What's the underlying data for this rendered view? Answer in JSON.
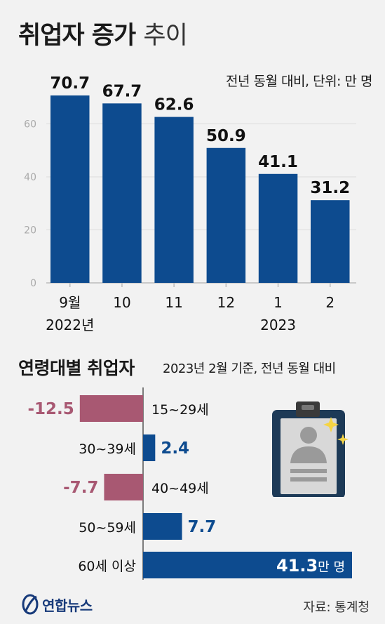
{
  "title_bold": "취업자 증가",
  "title_thin": "추이",
  "note_top": "전년 동월 대비, 단위: 만 명",
  "colors": {
    "navy": "#0d4b8f",
    "rose": "#a85872",
    "axis": "#bbbbbb"
  },
  "chart_data": [
    {
      "type": "bar",
      "categories": [
        "9월",
        "10",
        "11",
        "12",
        "1",
        "2"
      ],
      "year_labels": [
        "2022년",
        "2023"
      ],
      "values": [
        70.7,
        67.7,
        62.6,
        50.9,
        41.1,
        31.2
      ],
      "value_labels": [
        "70.7",
        "67.7",
        "62.6",
        "50.9",
        "41.1",
        "31.2"
      ],
      "yticks": [
        0,
        20,
        40,
        60
      ],
      "ylim": [
        0,
        72
      ],
      "grid": true
    },
    {
      "type": "bar",
      "orientation": "horizontal",
      "title": "연령대별 취업자",
      "note": "2023년 2월 기준, 전년 동월 대비",
      "categories": [
        "15~29세",
        "30~39세",
        "40~49세",
        "50~59세",
        "60세 이상"
      ],
      "values": [
        -12.5,
        2.4,
        -7.7,
        7.7,
        41.3
      ],
      "value_labels": [
        "-12.5",
        "2.4",
        "-7.7",
        "7.7",
        "41.3"
      ],
      "last_value_unit": "만 명"
    }
  ],
  "logo_text": "연합뉴스",
  "source": "자료: 통계청",
  "icon": "id-badge-icon"
}
